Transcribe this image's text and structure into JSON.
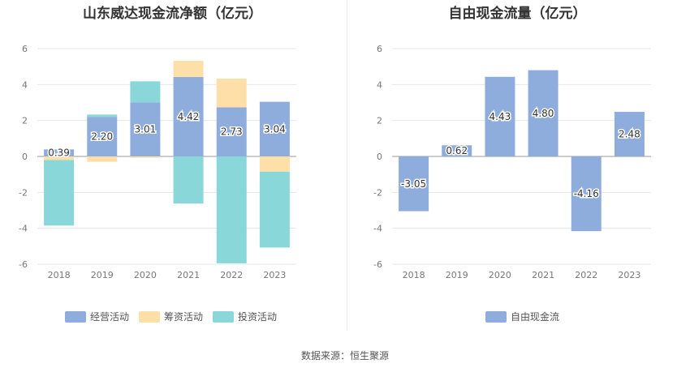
{
  "source_note": "数据来源：恒生聚源",
  "chart_data": [
    {
      "type": "bar",
      "stacked": true,
      "title": "山东威达现金流净额（亿元）",
      "categories": [
        "2018",
        "2019",
        "2020",
        "2021",
        "2022",
        "2023"
      ],
      "ylim": [
        -6,
        6
      ],
      "yticks": [
        6,
        4,
        2,
        0,
        -2,
        -4,
        -6
      ],
      "grid": true,
      "legend_position": "bottom",
      "series": [
        {
          "name": "经营活动",
          "color": "#8eaddc",
          "values": [
            0.39,
            2.2,
            3.01,
            4.42,
            2.73,
            3.04
          ],
          "labels": [
            "0.39",
            "2.20",
            "3.01",
            "4.42",
            "2.73",
            "3.04"
          ]
        },
        {
          "name": "筹资活动",
          "color": "#fddfa7",
          "values": [
            -0.2,
            -0.3,
            -0.08,
            0.9,
            1.6,
            -0.85
          ]
        },
        {
          "name": "投资活动",
          "color": "#89d7d9",
          "values": [
            -3.65,
            0.13,
            1.17,
            -2.62,
            -5.95,
            -4.22
          ]
        }
      ]
    },
    {
      "type": "bar",
      "title": "自由现金流量（亿元）",
      "categories": [
        "2018",
        "2019",
        "2020",
        "2021",
        "2022",
        "2023"
      ],
      "ylim": [
        -6,
        6
      ],
      "yticks": [
        6,
        4,
        2,
        0,
        -2,
        -4,
        -6
      ],
      "grid": true,
      "legend_position": "bottom",
      "series": [
        {
          "name": "自由现金流",
          "color": "#8eaddc",
          "values": [
            -3.05,
            0.62,
            4.43,
            4.8,
            -4.16,
            2.48
          ],
          "labels": [
            "-3.05",
            "0.62",
            "4.43",
            "4.80",
            "-4.16",
            "2.48"
          ]
        }
      ]
    }
  ]
}
